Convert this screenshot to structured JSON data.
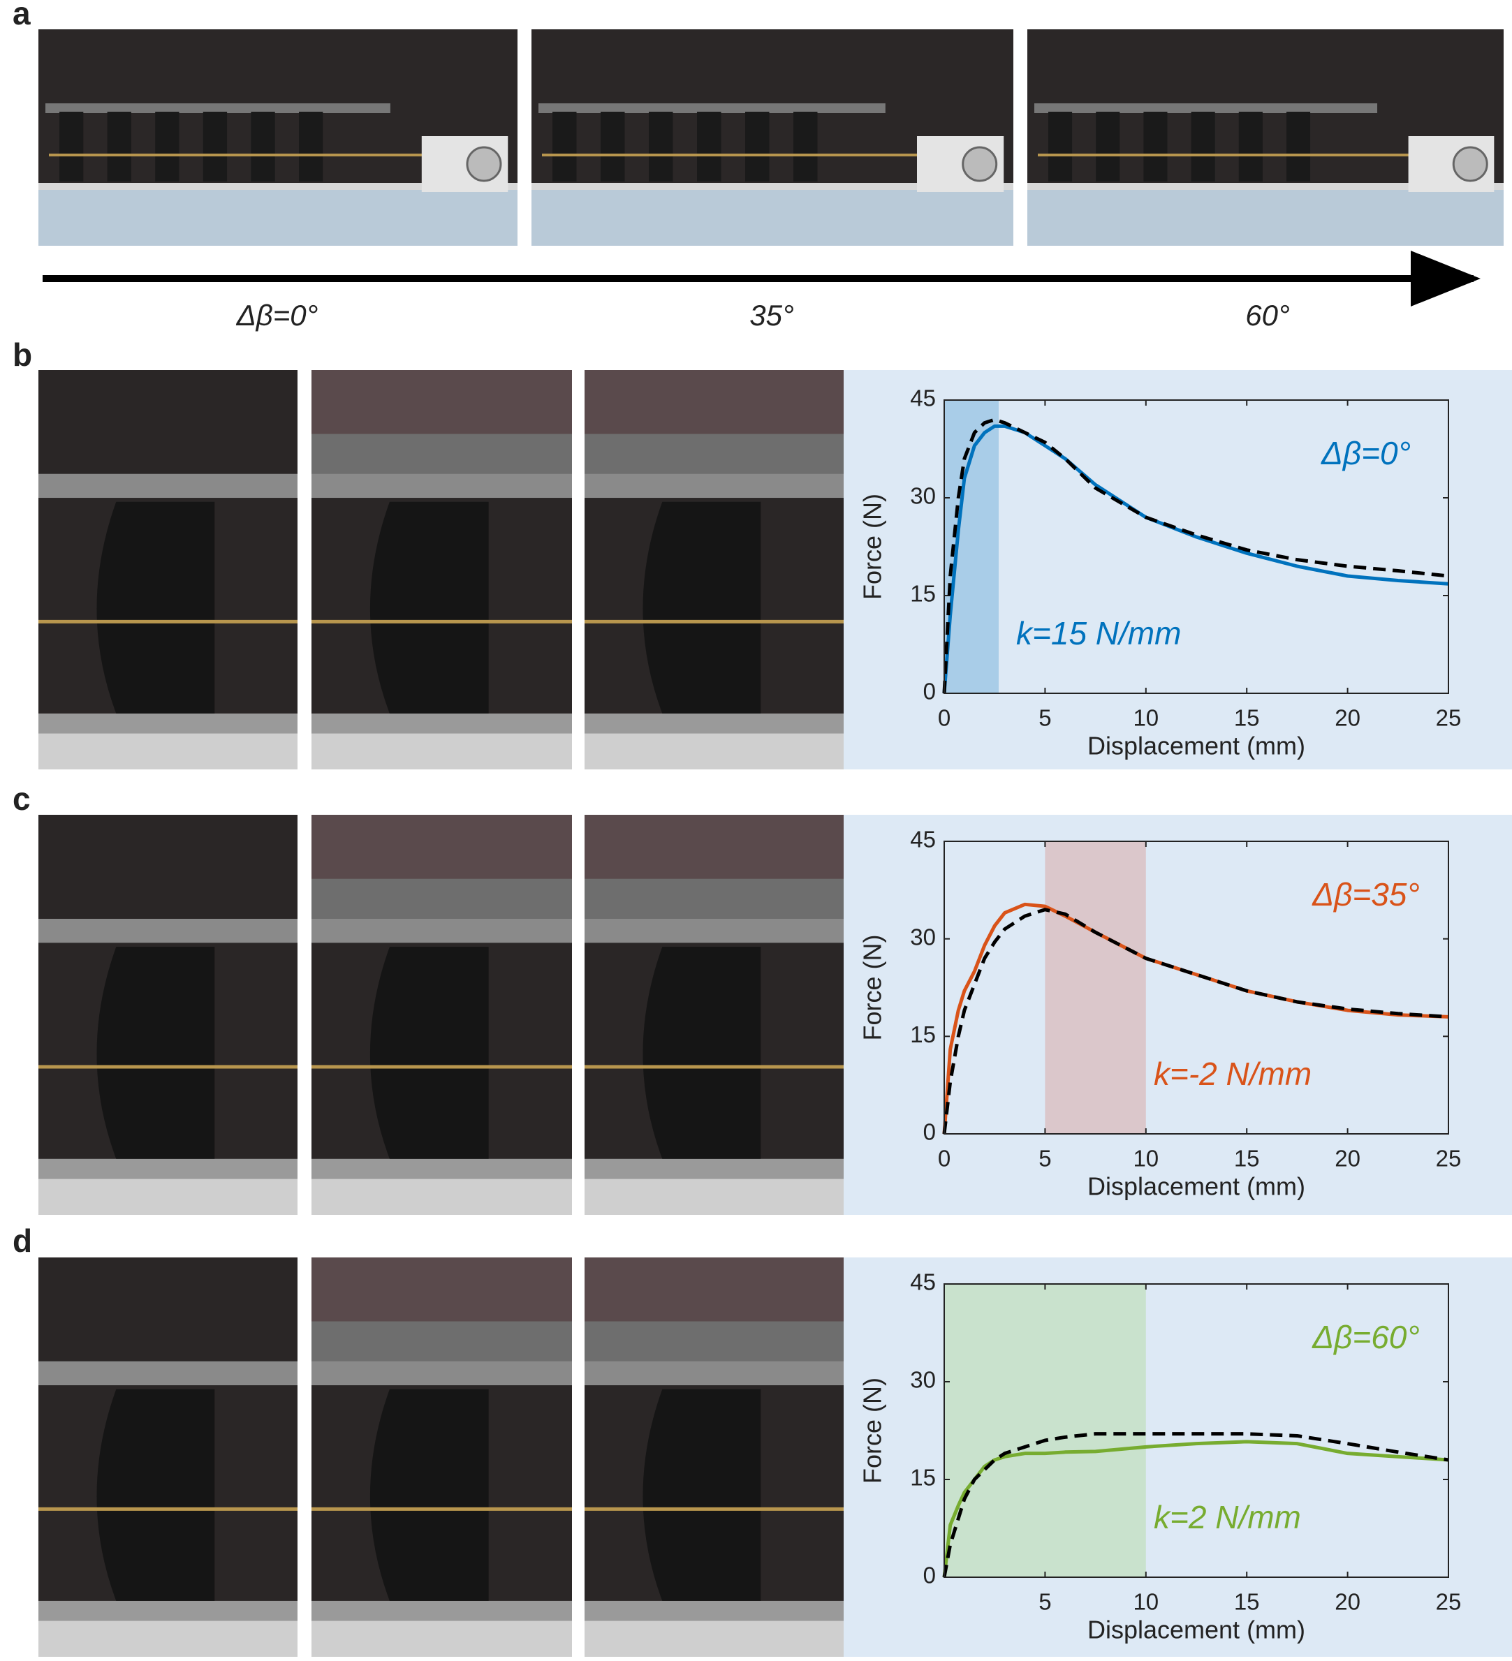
{
  "panel_labels": [
    "a",
    "b",
    "c",
    "d"
  ],
  "angle_labels": [
    "Δβ=0°",
    "35°",
    "60°"
  ],
  "chart_data": [
    {
      "type": "line",
      "xlabel": "Displacement (mm)",
      "ylabel": "Force (N)",
      "x": [
        0,
        0.3,
        0.7,
        1,
        1.5,
        2,
        2.5,
        3,
        4,
        5,
        6,
        7.5,
        10,
        12.5,
        15,
        17.5,
        20,
        22.5,
        25
      ],
      "series": [
        {
          "color": "#0072bd",
          "style": "solid",
          "values": [
            0,
            12,
            25,
            33,
            38,
            40,
            41,
            41,
            40,
            38,
            36,
            32,
            27,
            24,
            21.5,
            19.5,
            18,
            17.3,
            16.8
          ]
        },
        {
          "color": "#000000",
          "style": "dashed",
          "values": [
            0,
            18,
            30,
            36,
            40,
            41.5,
            42,
            41.5,
            40,
            38.5,
            36,
            31.5,
            27,
            24.3,
            22,
            20.5,
            19.5,
            18.8,
            18
          ]
        }
      ],
      "highlight": {
        "range": [
          0,
          2.7
        ],
        "color": "#a9cde8"
      },
      "annotations": [
        "Δβ=0°",
        "k=15 N/mm"
      ],
      "annotation_color": "#0072bd",
      "xlim": [
        0,
        25
      ],
      "ylim": [
        0,
        45
      ],
      "xticks": [
        0,
        5,
        10,
        15,
        20,
        25
      ],
      "yticks": [
        0,
        15,
        30,
        45
      ]
    },
    {
      "type": "line",
      "xlabel": "Displacement (mm)",
      "ylabel": "Force (N)",
      "x": [
        0,
        0.3,
        0.7,
        1,
        1.5,
        2,
        2.5,
        3,
        4,
        5,
        6,
        7.5,
        10,
        12.5,
        15,
        17.5,
        20,
        22.5,
        25
      ],
      "series": [
        {
          "color": "#d95319",
          "style": "solid",
          "values": [
            0,
            13,
            19,
            22,
            25,
            29,
            32,
            34,
            35.3,
            35,
            33.5,
            31,
            27,
            24.5,
            22,
            20.3,
            19,
            18.3,
            18
          ]
        },
        {
          "color": "#000000",
          "style": "dashed",
          "values": [
            0,
            8,
            15,
            19,
            23,
            27,
            29.5,
            31.5,
            33.5,
            34.5,
            33.8,
            31,
            27,
            24.5,
            22,
            20.3,
            19.2,
            18.5,
            18
          ]
        }
      ],
      "highlight": {
        "range": [
          5,
          10
        ],
        "color": "#dbc7cb"
      },
      "annotations": [
        "Δβ=35°",
        "k=-2 N/mm"
      ],
      "annotation_color": "#d95319",
      "xlim": [
        0,
        25
      ],
      "ylim": [
        0,
        45
      ],
      "xticks": [
        0,
        5,
        10,
        15,
        20,
        25
      ],
      "yticks": [
        0,
        15,
        30,
        45
      ]
    },
    {
      "type": "line",
      "xlabel": "Displacement (mm)",
      "ylabel": "Force (N)",
      "x": [
        0,
        0.3,
        0.7,
        1,
        1.5,
        2,
        2.5,
        3,
        4,
        5,
        6,
        7.5,
        10,
        12.5,
        15,
        17.5,
        20,
        22.5,
        25
      ],
      "series": [
        {
          "color": "#77ac30",
          "style": "solid",
          "values": [
            0,
            8,
            11,
            13,
            15,
            17,
            18,
            18.5,
            19,
            19,
            19.2,
            19.3,
            20,
            20.5,
            20.8,
            20.5,
            19,
            18.5,
            18
          ]
        },
        {
          "color": "#000000",
          "style": "dashed",
          "values": [
            0,
            5,
            9,
            12,
            15,
            16.5,
            18,
            19,
            20,
            21,
            21.5,
            22,
            22,
            22,
            22,
            21.7,
            20.5,
            19.2,
            18
          ]
        }
      ],
      "highlight": {
        "range": [
          0,
          10
        ],
        "color": "#c9e2cd"
      },
      "annotations": [
        "Δβ=60°",
        "k=2 N/mm"
      ],
      "annotation_color": "#77ac30",
      "xlim": [
        0,
        25
      ],
      "ylim": [
        0,
        45
      ],
      "xticks": [
        5,
        10,
        15,
        20,
        25
      ],
      "yticks": [
        0,
        15,
        30,
        45
      ]
    }
  ]
}
